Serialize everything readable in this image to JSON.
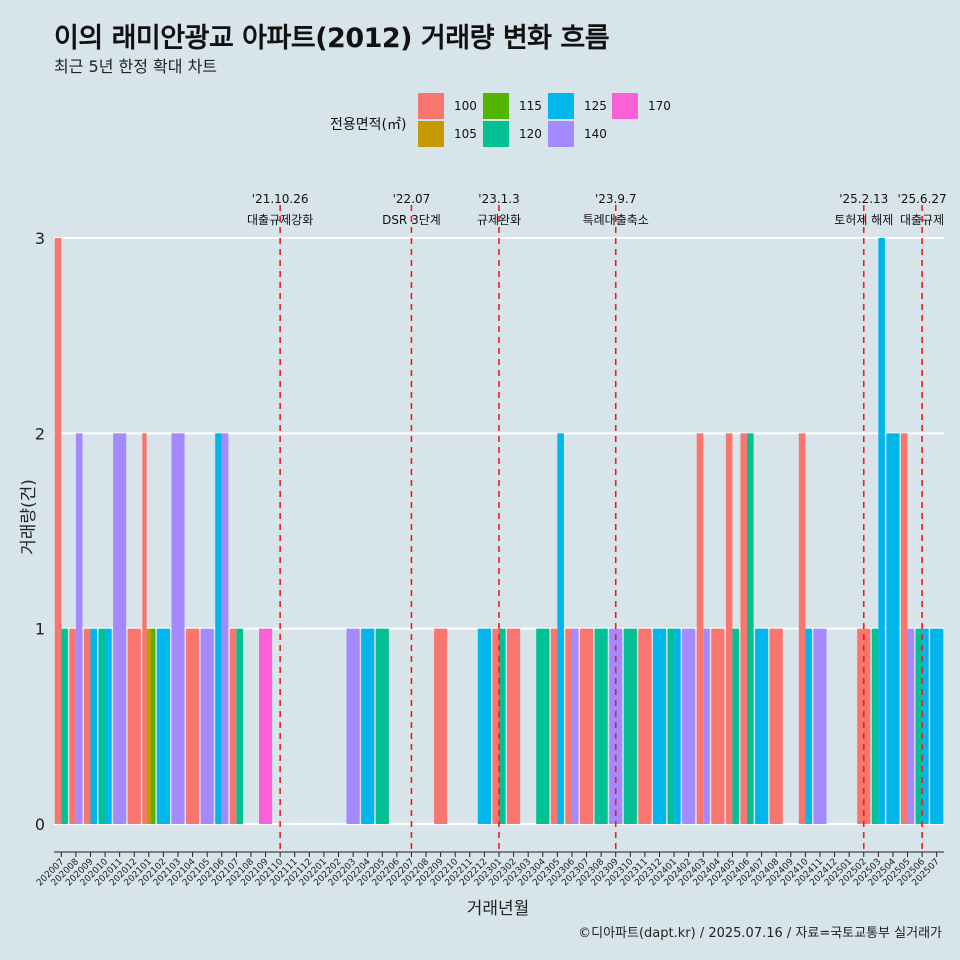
{
  "header": {
    "title": "이의 래미안광교 아파트(2012) 거래량 변화 흐름",
    "subtitle": "최근 5년 한정 확대 차트"
  },
  "caption": "©디아파트(dapt.kr) / 2025.07.16 / 자료=국토교통부 실거래가",
  "chart_data": {
    "type": "bar",
    "title": "이의 래미안광교 아파트(2012) 거래량 변화 흐름",
    "xlabel": "거래년월",
    "ylabel": "거래량(건)",
    "ylim": [
      0,
      3.1
    ],
    "yticks": [
      0,
      1,
      2,
      3
    ],
    "grid": true,
    "legend": {
      "title": "전용면적(㎡)",
      "position": "top",
      "entries": [
        {
          "label": "100",
          "color": "#f8766d"
        },
        {
          "label": "105",
          "color": "#c49a00"
        },
        {
          "label": "115",
          "color": "#53b400"
        },
        {
          "label": "120",
          "color": "#00c094"
        },
        {
          "label": "125",
          "color": "#00b6eb"
        },
        {
          "label": "140",
          "color": "#a58aff"
        },
        {
          "label": "170",
          "color": "#fb61d7"
        }
      ]
    },
    "categories": [
      "202007",
      "202008",
      "202009",
      "202010",
      "202011",
      "202012",
      "202101",
      "202102",
      "202103",
      "202104",
      "202105",
      "202106",
      "202107",
      "202108",
      "202109",
      "202110",
      "202111",
      "202112",
      "202201",
      "202202",
      "202203",
      "202204",
      "202205",
      "202206",
      "202207",
      "202208",
      "202209",
      "202210",
      "202211",
      "202212",
      "202301",
      "202302",
      "202303",
      "202304",
      "202305",
      "202306",
      "202307",
      "202308",
      "202309",
      "202310",
      "202311",
      "202312",
      "202401",
      "202402",
      "202403",
      "202404",
      "202405",
      "202406",
      "202407",
      "202408",
      "202409",
      "202410",
      "202411",
      "202412",
      "202501",
      "202502",
      "202503",
      "202504",
      "202505",
      "202506",
      "202507"
    ],
    "series": [
      {
        "name": "100",
        "values": [
          3,
          1,
          1,
          0,
          0,
          1,
          2,
          0,
          0,
          1,
          0,
          0,
          1,
          0,
          0,
          0,
          0,
          0,
          0,
          0,
          0,
          0,
          0,
          0,
          0,
          0,
          1,
          0,
          0,
          0,
          1,
          1,
          0,
          0,
          1,
          1,
          1,
          0,
          0,
          0,
          1,
          0,
          0,
          0,
          2,
          1,
          2,
          2,
          0,
          1,
          0,
          2,
          0,
          0,
          0,
          1,
          0,
          0,
          2,
          0,
          0
        ]
      },
      {
        "name": "105",
        "values": [
          0,
          0,
          0,
          0,
          0,
          0,
          1,
          0,
          0,
          0,
          0,
          0,
          0,
          0,
          0,
          0,
          0,
          0,
          0,
          0,
          0,
          0,
          0,
          0,
          0,
          0,
          0,
          0,
          0,
          0,
          0,
          0,
          0,
          0,
          0,
          0,
          0,
          0,
          0,
          0,
          0,
          0,
          0,
          0,
          0,
          0,
          0,
          0,
          0,
          0,
          0,
          0,
          0,
          0,
          0,
          0,
          0,
          0,
          0,
          0,
          0
        ]
      },
      {
        "name": "115",
        "values": [
          0,
          0,
          0,
          0,
          0,
          0,
          1,
          0,
          0,
          0,
          0,
          0,
          0,
          0,
          0,
          0,
          0,
          0,
          0,
          0,
          0,
          0,
          0,
          0,
          0,
          0,
          0,
          0,
          0,
          0,
          0,
          0,
          0,
          0,
          0,
          0,
          0,
          0,
          0,
          0,
          0,
          0,
          0,
          0,
          0,
          0,
          0,
          0,
          0,
          0,
          0,
          0,
          0,
          0,
          0,
          0,
          0,
          0,
          0,
          0,
          0
        ]
      },
      {
        "name": "120",
        "values": [
          1,
          0,
          0,
          1,
          0,
          0,
          0,
          0,
          0,
          0,
          0,
          0,
          1,
          0,
          0,
          0,
          0,
          0,
          0,
          0,
          0,
          0,
          1,
          0,
          0,
          0,
          0,
          0,
          0,
          0,
          1,
          0,
          0,
          1,
          0,
          0,
          0,
          1,
          0,
          1,
          0,
          0,
          1,
          0,
          0,
          0,
          1,
          2,
          0,
          0,
          0,
          0,
          0,
          0,
          0,
          0,
          1,
          0,
          0,
          1,
          0
        ]
      },
      {
        "name": "125",
        "values": [
          0,
          0,
          1,
          1,
          0,
          0,
          0,
          1,
          0,
          0,
          0,
          2,
          0,
          0,
          0,
          0,
          0,
          0,
          0,
          0,
          0,
          1,
          0,
          0,
          0,
          0,
          0,
          0,
          0,
          1,
          0,
          0,
          0,
          0,
          2,
          0,
          0,
          0,
          0,
          0,
          0,
          1,
          1,
          0,
          0,
          0,
          0,
          0,
          1,
          0,
          0,
          1,
          0,
          0,
          0,
          0,
          3,
          2,
          0,
          1,
          1
        ]
      },
      {
        "name": "140",
        "values": [
          0,
          2,
          0,
          0,
          2,
          0,
          0,
          0,
          2,
          0,
          1,
          2,
          0,
          0,
          0,
          0,
          0,
          0,
          0,
          0,
          1,
          0,
          0,
          0,
          0,
          0,
          0,
          0,
          0,
          0,
          0,
          0,
          0,
          0,
          0,
          1,
          0,
          0,
          1,
          0,
          0,
          0,
          0,
          1,
          1,
          0,
          0,
          0,
          0,
          0,
          0,
          0,
          1,
          0,
          0,
          0,
          0,
          0,
          1,
          0,
          0
        ]
      },
      {
        "name": "170",
        "values": [
          0,
          0,
          0,
          0,
          0,
          0,
          0,
          0,
          0,
          0,
          0,
          0,
          0,
          0,
          1,
          0,
          0,
          0,
          0,
          0,
          0,
          0,
          0,
          0,
          0,
          0,
          0,
          0,
          0,
          0,
          0,
          0,
          0,
          0,
          0,
          0,
          0,
          0,
          0,
          0,
          0,
          0,
          0,
          0,
          0,
          0,
          0,
          0,
          0,
          0,
          0,
          0,
          0,
          0,
          0,
          0,
          0,
          0,
          0,
          0,
          0
        ]
      }
    ],
    "annotations": [
      {
        "x": "202110",
        "date": "'21.10.26",
        "label": "대출규제강화"
      },
      {
        "x": "202207",
        "date": "'22.07",
        "label": "DSR 3단계"
      },
      {
        "x": "202301",
        "date": "'23.1.3",
        "label": "규제완화"
      },
      {
        "x": "202309",
        "date": "'23.9.7",
        "label": "특례대출축소"
      },
      {
        "x": "202502",
        "date": "'25.2.13",
        "label": "토허제 해제"
      },
      {
        "x": "202506",
        "date": "'25.6.27",
        "label": "대출규제"
      }
    ]
  }
}
